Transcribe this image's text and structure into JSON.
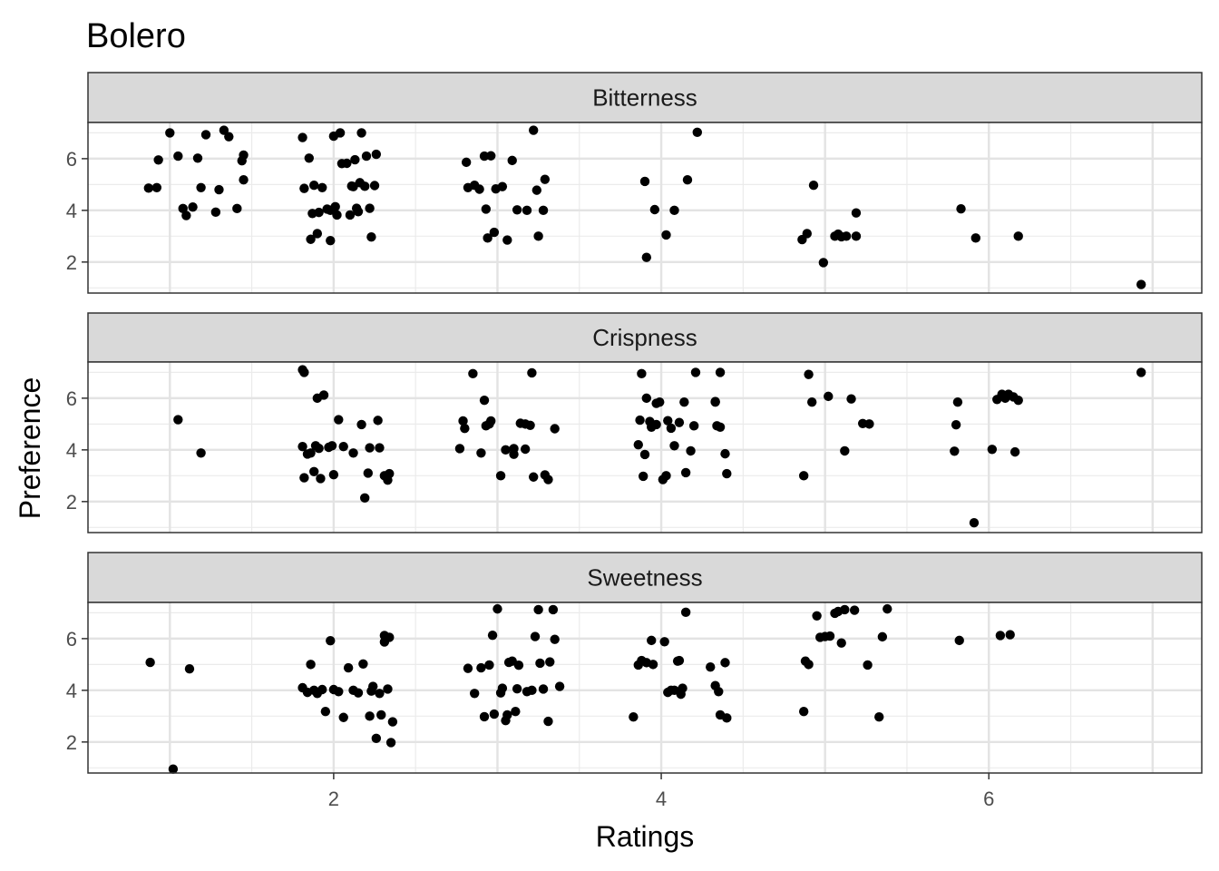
{
  "chart_data": {
    "type": "scatter",
    "title": "Bolero",
    "xlabel": "Ratings",
    "ylabel": "Preference",
    "xlim": [
      0.5,
      7.3
    ],
    "ylim": [
      0.8,
      7.4
    ],
    "x_ticks": [
      2,
      4,
      6
    ],
    "y_ticks": [
      2,
      4,
      6
    ],
    "grid": true,
    "jitter": true,
    "point_color": "#000000",
    "facets": [
      {
        "name": "Bitterness",
        "points": [
          [
            0.87,
            4.86
          ],
          [
            0.92,
            4.88
          ],
          [
            0.93,
            5.95
          ],
          [
            1.0,
            7.0
          ],
          [
            1.05,
            6.1
          ],
          [
            1.08,
            4.07
          ],
          [
            1.1,
            3.8
          ],
          [
            1.14,
            4.13
          ],
          [
            1.17,
            6.02
          ],
          [
            1.19,
            4.88
          ],
          [
            1.22,
            6.93
          ],
          [
            1.28,
            3.93
          ],
          [
            1.3,
            4.8
          ],
          [
            1.33,
            7.1
          ],
          [
            1.36,
            6.85
          ],
          [
            1.41,
            4.07
          ],
          [
            1.44,
            5.92
          ],
          [
            1.45,
            6.14
          ],
          [
            1.45,
            5.18
          ],
          [
            1.81,
            6.82
          ],
          [
            1.82,
            4.85
          ],
          [
            1.85,
            6.02
          ],
          [
            1.86,
            2.88
          ],
          [
            1.87,
            3.88
          ],
          [
            1.88,
            4.97
          ],
          [
            1.9,
            3.1
          ],
          [
            1.91,
            3.92
          ],
          [
            1.93,
            4.88
          ],
          [
            1.96,
            4.05
          ],
          [
            1.98,
            4.0
          ],
          [
            1.98,
            2.83
          ],
          [
            2.0,
            6.87
          ],
          [
            2.01,
            4.14
          ],
          [
            2.02,
            3.82
          ],
          [
            2.04,
            7.0
          ],
          [
            2.05,
            5.81
          ],
          [
            2.08,
            5.82
          ],
          [
            2.1,
            3.82
          ],
          [
            2.11,
            4.94
          ],
          [
            2.12,
            4.92
          ],
          [
            2.13,
            5.96
          ],
          [
            2.14,
            4.08
          ],
          [
            2.15,
            3.95
          ],
          [
            2.16,
            5.07
          ],
          [
            2.17,
            7.0
          ],
          [
            2.19,
            4.93
          ],
          [
            2.2,
            6.1
          ],
          [
            2.22,
            4.08
          ],
          [
            2.23,
            2.97
          ],
          [
            2.25,
            4.96
          ],
          [
            2.26,
            6.17
          ],
          [
            2.81,
            5.86
          ],
          [
            2.82,
            4.88
          ],
          [
            2.86,
            4.97
          ],
          [
            2.89,
            4.82
          ],
          [
            2.92,
            6.1
          ],
          [
            2.93,
            4.05
          ],
          [
            2.94,
            2.93
          ],
          [
            2.96,
            6.11
          ],
          [
            2.98,
            3.15
          ],
          [
            2.99,
            4.83
          ],
          [
            3.03,
            4.92
          ],
          [
            3.06,
            2.85
          ],
          [
            3.09,
            5.93
          ],
          [
            3.12,
            4.02
          ],
          [
            3.18,
            4.0
          ],
          [
            3.22,
            7.1
          ],
          [
            3.24,
            4.78
          ],
          [
            3.25,
            3.0
          ],
          [
            3.28,
            4.0
          ],
          [
            3.29,
            5.2
          ],
          [
            3.9,
            5.12
          ],
          [
            3.91,
            2.18
          ],
          [
            3.96,
            4.03
          ],
          [
            4.03,
            3.05
          ],
          [
            4.08,
            4.0
          ],
          [
            4.16,
            5.18
          ],
          [
            4.22,
            7.02
          ],
          [
            4.86,
            2.87
          ],
          [
            4.89,
            3.1
          ],
          [
            4.93,
            4.97
          ],
          [
            4.99,
            1.98
          ],
          [
            5.06,
            3.0
          ],
          [
            5.08,
            3.08
          ],
          [
            5.1,
            2.98
          ],
          [
            5.13,
            3.0
          ],
          [
            5.19,
            3.0
          ],
          [
            5.19,
            3.9
          ],
          [
            5.83,
            4.06
          ],
          [
            5.92,
            2.93
          ],
          [
            6.18,
            3.0
          ],
          [
            6.93,
            1.13
          ]
        ]
      },
      {
        "name": "Crispness",
        "points": [
          [
            1.05,
            5.17
          ],
          [
            1.19,
            3.88
          ],
          [
            1.81,
            7.1
          ],
          [
            1.81,
            4.13
          ],
          [
            1.82,
            2.92
          ],
          [
            1.82,
            7.0
          ],
          [
            1.84,
            3.84
          ],
          [
            1.86,
            3.88
          ],
          [
            1.88,
            3.16
          ],
          [
            1.89,
            4.16
          ],
          [
            1.9,
            6.0
          ],
          [
            1.91,
            4.06
          ],
          [
            1.92,
            2.89
          ],
          [
            1.94,
            6.12
          ],
          [
            1.97,
            4.1
          ],
          [
            1.99,
            4.16
          ],
          [
            2.0,
            3.04
          ],
          [
            2.03,
            5.17
          ],
          [
            2.06,
            4.13
          ],
          [
            2.12,
            3.88
          ],
          [
            2.17,
            4.98
          ],
          [
            2.19,
            2.14
          ],
          [
            2.21,
            3.1
          ],
          [
            2.22,
            4.08
          ],
          [
            2.27,
            5.14
          ],
          [
            2.28,
            4.08
          ],
          [
            2.31,
            3.0
          ],
          [
            2.33,
            2.83
          ],
          [
            2.34,
            3.08
          ],
          [
            2.77,
            4.05
          ],
          [
            2.79,
            5.12
          ],
          [
            2.8,
            4.83
          ],
          [
            2.85,
            6.95
          ],
          [
            2.9,
            3.88
          ],
          [
            2.92,
            5.92
          ],
          [
            2.93,
            4.93
          ],
          [
            2.95,
            5.0
          ],
          [
            2.96,
            5.12
          ],
          [
            3.02,
            3.0
          ],
          [
            3.05,
            4.0
          ],
          [
            3.1,
            4.05
          ],
          [
            3.1,
            3.83
          ],
          [
            3.14,
            5.03
          ],
          [
            3.17,
            4.03
          ],
          [
            3.17,
            5.0
          ],
          [
            3.2,
            4.95
          ],
          [
            3.21,
            6.98
          ],
          [
            3.22,
            2.95
          ],
          [
            3.29,
            3.03
          ],
          [
            3.31,
            2.85
          ],
          [
            3.35,
            4.82
          ],
          [
            3.86,
            4.2
          ],
          [
            3.87,
            5.15
          ],
          [
            3.88,
            6.95
          ],
          [
            3.89,
            2.98
          ],
          [
            3.9,
            3.82
          ],
          [
            3.91,
            6.0
          ],
          [
            3.93,
            5.1
          ],
          [
            3.94,
            4.88
          ],
          [
            3.97,
            4.98
          ],
          [
            3.97,
            5.8
          ],
          [
            3.99,
            5.85
          ],
          [
            4.01,
            2.85
          ],
          [
            4.03,
            3.0
          ],
          [
            4.04,
            5.13
          ],
          [
            4.06,
            4.84
          ],
          [
            4.08,
            4.16
          ],
          [
            4.11,
            5.06
          ],
          [
            4.14,
            5.85
          ],
          [
            4.15,
            3.12
          ],
          [
            4.18,
            3.96
          ],
          [
            4.2,
            4.93
          ],
          [
            4.21,
            7.0
          ],
          [
            4.33,
            5.85
          ],
          [
            4.33,
            5.87
          ],
          [
            4.34,
            4.93
          ],
          [
            4.36,
            7.0
          ],
          [
            4.36,
            4.88
          ],
          [
            4.39,
            3.85
          ],
          [
            4.4,
            3.08
          ],
          [
            4.87,
            3.0
          ],
          [
            4.9,
            6.92
          ],
          [
            4.92,
            5.85
          ],
          [
            5.02,
            6.07
          ],
          [
            5.12,
            3.96
          ],
          [
            5.16,
            5.97
          ],
          [
            5.23,
            5.02
          ],
          [
            5.27,
            5.0
          ],
          [
            5.79,
            3.95
          ],
          [
            5.8,
            4.97
          ],
          [
            5.81,
            5.85
          ],
          [
            5.91,
            1.18
          ],
          [
            6.02,
            4.02
          ],
          [
            6.05,
            5.95
          ],
          [
            6.08,
            6.15
          ],
          [
            6.1,
            6.0
          ],
          [
            6.12,
            6.15
          ],
          [
            6.15,
            6.05
          ],
          [
            6.16,
            3.92
          ],
          [
            6.18,
            5.92
          ],
          [
            6.93,
            7.0
          ]
        ]
      },
      {
        "name": "Sweetness",
        "points": [
          [
            0.88,
            5.08
          ],
          [
            1.02,
            0.95
          ],
          [
            1.12,
            4.83
          ],
          [
            1.81,
            4.1
          ],
          [
            1.84,
            3.92
          ],
          [
            1.86,
            5.0
          ],
          [
            1.88,
            4.0
          ],
          [
            1.9,
            3.88
          ],
          [
            1.93,
            4.03
          ],
          [
            1.95,
            3.18
          ],
          [
            1.98,
            5.92
          ],
          [
            2.0,
            4.03
          ],
          [
            2.03,
            3.95
          ],
          [
            2.06,
            2.95
          ],
          [
            2.09,
            4.87
          ],
          [
            2.12,
            4.0
          ],
          [
            2.15,
            3.9
          ],
          [
            2.18,
            5.02
          ],
          [
            2.22,
            3.0
          ],
          [
            2.23,
            3.97
          ],
          [
            2.24,
            4.15
          ],
          [
            2.26,
            2.14
          ],
          [
            2.28,
            3.88
          ],
          [
            2.29,
            3.05
          ],
          [
            2.31,
            5.87
          ],
          [
            2.31,
            6.12
          ],
          [
            2.33,
            4.05
          ],
          [
            2.34,
            6.05
          ],
          [
            2.35,
            1.98
          ],
          [
            2.36,
            2.78
          ],
          [
            2.82,
            4.85
          ],
          [
            2.86,
            3.88
          ],
          [
            2.9,
            4.87
          ],
          [
            2.92,
            2.98
          ],
          [
            2.95,
            4.98
          ],
          [
            2.97,
            6.13
          ],
          [
            2.98,
            3.08
          ],
          [
            3.0,
            7.15
          ],
          [
            3.02,
            3.9
          ],
          [
            3.03,
            4.08
          ],
          [
            3.05,
            2.83
          ],
          [
            3.06,
            3.05
          ],
          [
            3.07,
            5.08
          ],
          [
            3.09,
            5.13
          ],
          [
            3.11,
            3.18
          ],
          [
            3.12,
            4.06
          ],
          [
            3.13,
            4.97
          ],
          [
            3.18,
            3.95
          ],
          [
            3.21,
            4.0
          ],
          [
            3.23,
            6.08
          ],
          [
            3.25,
            7.12
          ],
          [
            3.26,
            5.05
          ],
          [
            3.28,
            4.05
          ],
          [
            3.31,
            2.8
          ],
          [
            3.32,
            5.1
          ],
          [
            3.34,
            7.12
          ],
          [
            3.35,
            5.97
          ],
          [
            3.38,
            4.15
          ],
          [
            3.83,
            2.97
          ],
          [
            3.86,
            4.98
          ],
          [
            3.88,
            5.15
          ],
          [
            3.91,
            5.07
          ],
          [
            3.94,
            5.93
          ],
          [
            3.95,
            5.0
          ],
          [
            4.02,
            5.88
          ],
          [
            4.04,
            3.92
          ],
          [
            4.06,
            4.0
          ],
          [
            4.08,
            4.0
          ],
          [
            4.1,
            5.13
          ],
          [
            4.11,
            5.15
          ],
          [
            4.12,
            3.85
          ],
          [
            4.13,
            4.08
          ],
          [
            4.15,
            7.02
          ],
          [
            4.3,
            4.9
          ],
          [
            4.33,
            4.18
          ],
          [
            4.35,
            3.95
          ],
          [
            4.36,
            3.05
          ],
          [
            4.39,
            5.07
          ],
          [
            4.4,
            2.93
          ],
          [
            4.87,
            3.18
          ],
          [
            4.88,
            5.13
          ],
          [
            4.9,
            5.0
          ],
          [
            4.95,
            6.88
          ],
          [
            4.97,
            6.05
          ],
          [
            5.0,
            6.08
          ],
          [
            5.03,
            6.1
          ],
          [
            5.06,
            6.98
          ],
          [
            5.08,
            7.05
          ],
          [
            5.1,
            5.83
          ],
          [
            5.12,
            7.12
          ],
          [
            5.18,
            7.1
          ],
          [
            5.26,
            4.98
          ],
          [
            5.33,
            2.97
          ],
          [
            5.35,
            6.07
          ],
          [
            5.38,
            7.15
          ],
          [
            5.82,
            5.93
          ],
          [
            6.07,
            6.12
          ],
          [
            6.13,
            6.15
          ]
        ]
      }
    ]
  }
}
